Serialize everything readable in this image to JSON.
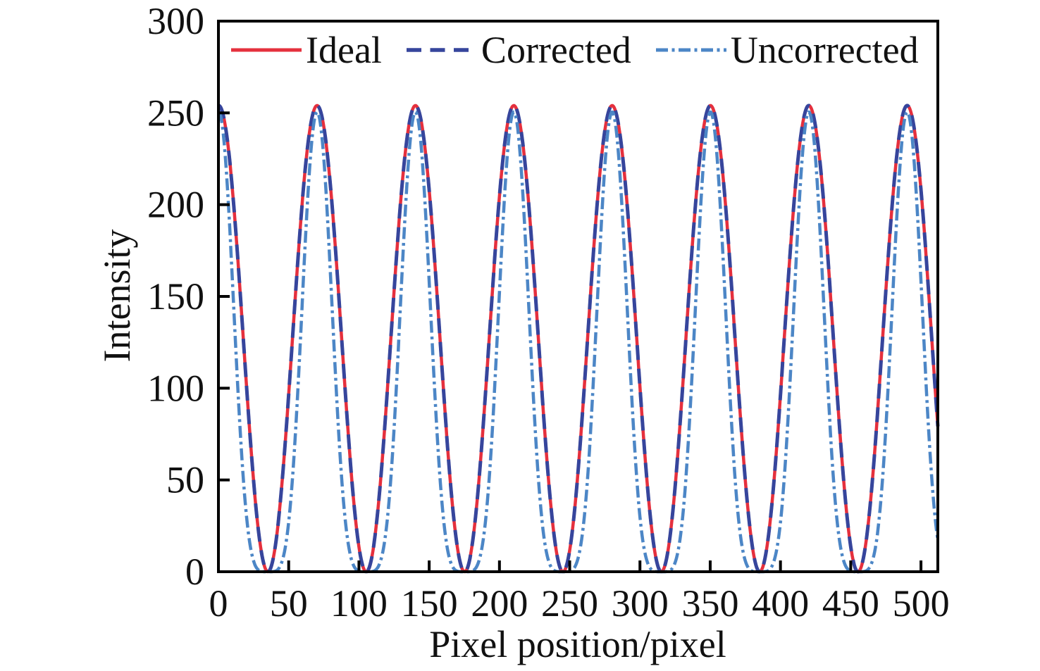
{
  "figure": {
    "background": "#ffffff",
    "axes_color": "#000000"
  },
  "chart_data": {
    "type": "line",
    "title": "",
    "xlabel": "Pixel position/pixel",
    "ylabel": "Intensity",
    "xlim": [
      0,
      512
    ],
    "ylim": [
      0,
      300
    ],
    "xticks": [
      0,
      50,
      100,
      150,
      200,
      250,
      300,
      350,
      400,
      450,
      500
    ],
    "yticks": [
      0,
      50,
      100,
      150,
      200,
      250,
      300
    ],
    "grid": false,
    "legend": {
      "position": "top-inside",
      "order": [
        "Ideal",
        "Corrected",
        "Uncorrected"
      ]
    },
    "curve_formula": "intensity(x) = scale * (0.5 + 0.5*cos(2*pi*(x - peak_x)/period))^gamma",
    "series": [
      {
        "name": "Ideal",
        "color": "#e5303d",
        "line_style": "solid",
        "line_width": 4.5,
        "model": {
          "scale": 254,
          "period": 70,
          "peak_x": 0.2,
          "gamma": 1.0
        }
      },
      {
        "name": "Corrected",
        "color": "#36459c",
        "line_style": "dashed",
        "dash": [
          21,
          12.5
        ],
        "line_width": 5,
        "model": {
          "scale": 254,
          "period": 70,
          "peak_x": 0.2,
          "gamma": 1.0
        }
      },
      {
        "name": "Uncorrected",
        "color": "#4c86c6",
        "line_style": "dash-dot",
        "dash": [
          17,
          5.5,
          4,
          5.5
        ],
        "line_width": 4.5,
        "model": {
          "scale": 250.5,
          "period": 70,
          "peak_x": 0.2,
          "gamma": 2.3
        }
      }
    ],
    "note": "Ideal and Corrected curves overlap; Uncorrected shows gamma distortion: narrower peaks, flattened zero troughs."
  }
}
